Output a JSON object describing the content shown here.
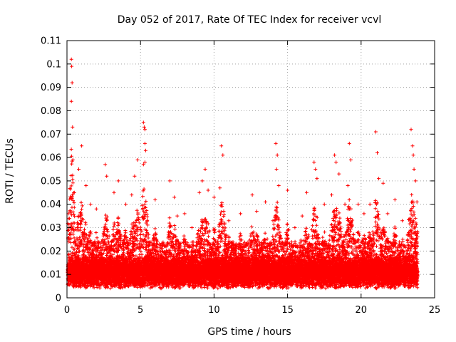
{
  "chart_data": {
    "type": "scatter",
    "title": "Day 052 of 2017, Rate Of TEC Index for receiver vcvl",
    "xlabel": "GPS time / hours",
    "ylabel": "ROTI / TECUs",
    "xlim": [
      0,
      25
    ],
    "ylim": [
      0,
      0.11
    ],
    "xticks": [
      0,
      5,
      10,
      15,
      20,
      25
    ],
    "yticks": [
      0,
      0.01,
      0.02,
      0.03,
      0.04,
      0.05,
      0.06,
      0.07,
      0.08,
      0.09,
      0.1,
      0.11
    ],
    "xtick_labels": [
      "0",
      "5",
      "10",
      "15",
      "20",
      "25"
    ],
    "ytick_labels": [
      "0",
      "0.01",
      "0.02",
      "0.03",
      "0.04",
      "0.05",
      "0.06",
      "0.07",
      "0.08",
      "0.09",
      "0.1",
      "0.11"
    ],
    "grid": true,
    "marker": "+",
    "marker_color": "#ff0000",
    "series": [
      {
        "points": [
          [
            0.3,
            0.102
          ],
          [
            0.32,
            0.099
          ],
          [
            0.35,
            0.092
          ],
          [
            0.3,
            0.084
          ],
          [
            0.38,
            0.073
          ],
          [
            0.4,
            0.059
          ],
          [
            0.5,
            0.045
          ],
          [
            0.8,
            0.055
          ],
          [
            1.0,
            0.065
          ],
          [
            1.3,
            0.048
          ],
          [
            1.6,
            0.04
          ],
          [
            2.0,
            0.038
          ],
          [
            2.6,
            0.057
          ],
          [
            2.7,
            0.052
          ],
          [
            3.2,
            0.045
          ],
          [
            3.5,
            0.05
          ],
          [
            4.0,
            0.04
          ],
          [
            4.4,
            0.044
          ],
          [
            4.6,
            0.052
          ],
          [
            4.8,
            0.059
          ],
          [
            5.2,
            0.075
          ],
          [
            5.25,
            0.073
          ],
          [
            5.3,
            0.072
          ],
          [
            5.3,
            0.066
          ],
          [
            5.35,
            0.063
          ],
          [
            5.3,
            0.058
          ],
          [
            5.2,
            0.057
          ],
          [
            6.0,
            0.042
          ],
          [
            7.0,
            0.05
          ],
          [
            7.3,
            0.043
          ],
          [
            7.5,
            0.035
          ],
          [
            8.0,
            0.036
          ],
          [
            8.5,
            0.03
          ],
          [
            9.0,
            0.045
          ],
          [
            9.2,
            0.05
          ],
          [
            9.4,
            0.055
          ],
          [
            9.6,
            0.046
          ],
          [
            10.0,
            0.043
          ],
          [
            10.5,
            0.065
          ],
          [
            10.6,
            0.061
          ],
          [
            10.4,
            0.047
          ],
          [
            11.0,
            0.033
          ],
          [
            11.8,
            0.036
          ],
          [
            12.6,
            0.044
          ],
          [
            12.9,
            0.037
          ],
          [
            13.5,
            0.041
          ],
          [
            14.0,
            0.033
          ],
          [
            14.2,
            0.066
          ],
          [
            14.3,
            0.061
          ],
          [
            14.25,
            0.055
          ],
          [
            14.4,
            0.048
          ],
          [
            15.0,
            0.046
          ],
          [
            15.5,
            0.03
          ],
          [
            16.0,
            0.035
          ],
          [
            16.3,
            0.045
          ],
          [
            16.8,
            0.058
          ],
          [
            16.9,
            0.055
          ],
          [
            17.0,
            0.051
          ],
          [
            17.5,
            0.04
          ],
          [
            18.0,
            0.044
          ],
          [
            18.2,
            0.061
          ],
          [
            18.3,
            0.058
          ],
          [
            18.5,
            0.053
          ],
          [
            18.9,
            0.04
          ],
          [
            19.2,
            0.066
          ],
          [
            19.3,
            0.059
          ],
          [
            19.1,
            0.048
          ],
          [
            19.8,
            0.04
          ],
          [
            20.2,
            0.036
          ],
          [
            20.6,
            0.04
          ],
          [
            21.0,
            0.071
          ],
          [
            21.1,
            0.062
          ],
          [
            21.2,
            0.051
          ],
          [
            21.5,
            0.049
          ],
          [
            21.8,
            0.036
          ],
          [
            22.3,
            0.042
          ],
          [
            22.8,
            0.033
          ],
          [
            23.4,
            0.072
          ],
          [
            23.5,
            0.065
          ],
          [
            23.55,
            0.061
          ],
          [
            23.6,
            0.055
          ],
          [
            23.7,
            0.05
          ],
          [
            23.8,
            0.041
          ],
          [
            23.7,
            0.034
          ]
        ],
        "noise_floor": [
          0.004,
          0.012
        ],
        "typical_band": [
          0.008,
          0.03
        ],
        "time_range": [
          0.05,
          23.85
        ]
      }
    ]
  }
}
